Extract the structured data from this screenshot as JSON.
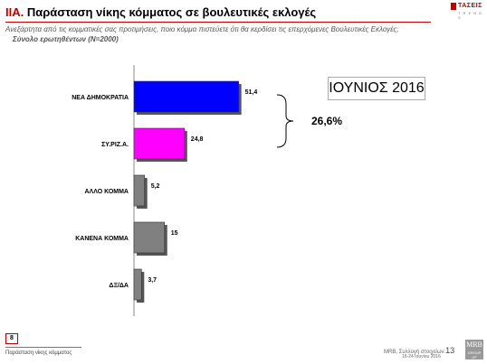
{
  "header": {
    "title_num": "ΙΙΑ.",
    "title_text": "Παράσταση νίκης κόμματος σε βουλευτικές εκλογές",
    "subtitle": "Ανεξάρτητα από τις κομματικές σας προτιμήσεις, ποιο κόμμα πιστεύετε ότι θα κερδίσει τις επερχόμενες Βουλευτικές Εκλογές;",
    "base": "Σύνολο ερωτηθέντων (N=2000)"
  },
  "logo_top": {
    "brand": "ΤΑΣΕΙΣ",
    "tagline": "T R E N D S"
  },
  "period_label": "ΙΟΥΝΙΟΣ 2016",
  "gap_value": "26,6%",
  "colors": {
    "accent": "#c00000",
    "nd": "#0000ff",
    "syriza": "#ff00ff",
    "other": "#808080"
  },
  "chart_data": {
    "type": "bar",
    "orientation": "horizontal",
    "categories": [
      "ΝΕΑ ΔΗΜΟΚΡΑΤΙΑ",
      "ΣΥ.ΡΙΖ.Α.",
      "ΑΛΛΟ ΚΟΜΜΑ",
      "ΚΑΝΕΝΑ ΚΟΜΜΑ",
      "ΔΞ/ΔΑ"
    ],
    "values": [
      51.4,
      24.8,
      5.2,
      15,
      3.7
    ],
    "value_labels": [
      "51,4",
      "24,8",
      "5,2",
      "15",
      "3,7"
    ],
    "bar_colors": [
      "#0000ff",
      "#ff00ff",
      "#808080",
      "#808080",
      "#808080"
    ],
    "xlim": [
      0,
      60
    ],
    "grid": false,
    "legend": "none",
    "annotation": {
      "text": "26,6%",
      "brackets": [
        "ΝΕΑ ΔΗΜΟΚΡΑΤΙΑ",
        "ΣΥ.ΡΙΖ.Α."
      ]
    }
  },
  "footer": {
    "page_number": "8",
    "title": "Παράσταση νίκης κόμματος",
    "source": "MRB, Συλλογή στοιχείων:",
    "page": "13",
    "dates": "16-24 Ιουνίου 2016",
    "logo": "MRB",
    "logo_group": "GROUP OF"
  }
}
